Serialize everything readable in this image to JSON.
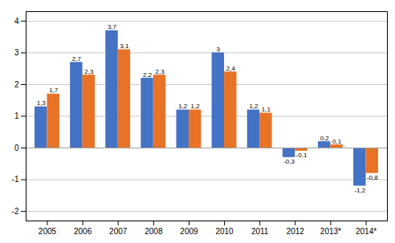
{
  "chart_data": {
    "type": "bar",
    "categories": [
      "2005",
      "2006",
      "2007",
      "2008",
      "2009",
      "2010",
      "2011",
      "2012",
      "2013*",
      "2014*"
    ],
    "series": [
      {
        "color": "#4472C4",
        "values": [
          1.3,
          2.7,
          3.7,
          2.2,
          1.2,
          3.0,
          1.2,
          -0.3,
          0.2,
          -1.2
        ],
        "value_labels": [
          "1,3",
          "2,7",
          "3,7",
          "2,2",
          "1,2",
          "3",
          "1,2",
          "-0,3",
          "0,2",
          "-1,2"
        ]
      },
      {
        "color": "#E87327",
        "values": [
          1.7,
          2.3,
          3.1,
          2.3,
          1.2,
          2.4,
          1.1,
          -0.1,
          0.1,
          -0.8
        ],
        "value_labels": [
          "1,7",
          "2,3",
          "3,1",
          "2,3",
          "1,2",
          "2,4",
          "1,1",
          "-0,1",
          "0,1",
          "-0,8"
        ]
      }
    ],
    "ylim": [
      -2.3,
      4.3
    ],
    "yticks": [
      -2,
      -1,
      0,
      1,
      2,
      3,
      4
    ],
    "grid": true,
    "data_labels": true
  }
}
